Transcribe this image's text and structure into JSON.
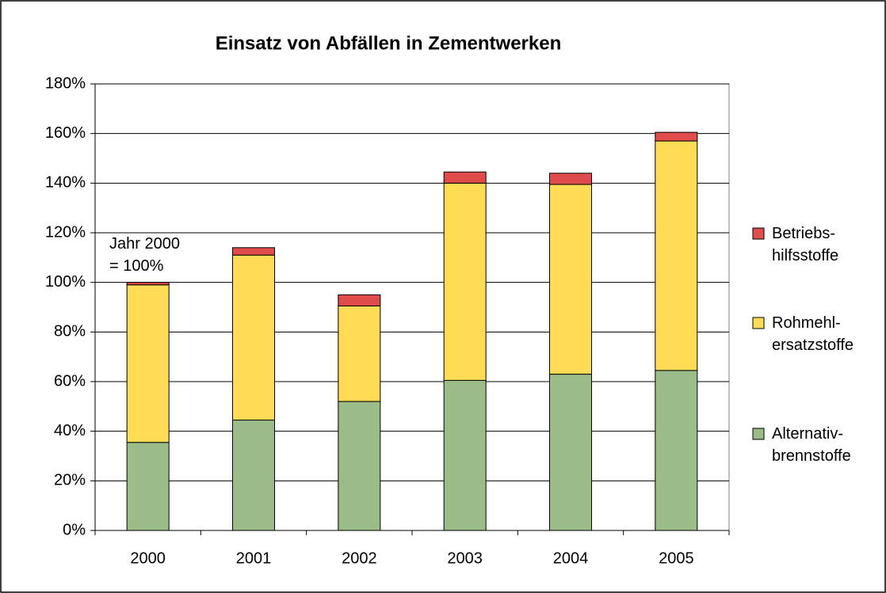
{
  "chart_data": {
    "type": "stacked_bar",
    "title": "Einsatz von Abfällen in Zementwerken",
    "annotation": "Jahr 2000\n= 100%",
    "categories": [
      "2000",
      "2001",
      "2002",
      "2003",
      "2004",
      "2005"
    ],
    "series": [
      {
        "name": "Alternativ-\nbrennstoffe",
        "color": "#9bbb89",
        "values": [
          35.5,
          44.5,
          52,
          60.5,
          63,
          64.5
        ]
      },
      {
        "name": "Rohmehl-\nersatzstoffe",
        "color": "#ffdc55",
        "values": [
          63.5,
          66.5,
          38.5,
          79.5,
          76.5,
          92.5
        ]
      },
      {
        "name": "Betriebs-\nhilfsstoffe",
        "color": "#e04b4b",
        "values": [
          1,
          3,
          4.5,
          4.5,
          4.5,
          3.5
        ]
      }
    ],
    "ylim": [
      0,
      180
    ],
    "yticks": [
      {
        "value": 0,
        "label": "0%"
      },
      {
        "value": 20,
        "label": "20%"
      },
      {
        "value": 40,
        "label": "40%"
      },
      {
        "value": 60,
        "label": "60%"
      },
      {
        "value": 80,
        "label": "80%"
      },
      {
        "value": 100,
        "label": "100%"
      },
      {
        "value": 120,
        "label": "120%"
      },
      {
        "value": 140,
        "label": "140%"
      },
      {
        "value": 160,
        "label": "160%"
      },
      {
        "value": 180,
        "label": "180%"
      }
    ],
    "grid": true
  }
}
